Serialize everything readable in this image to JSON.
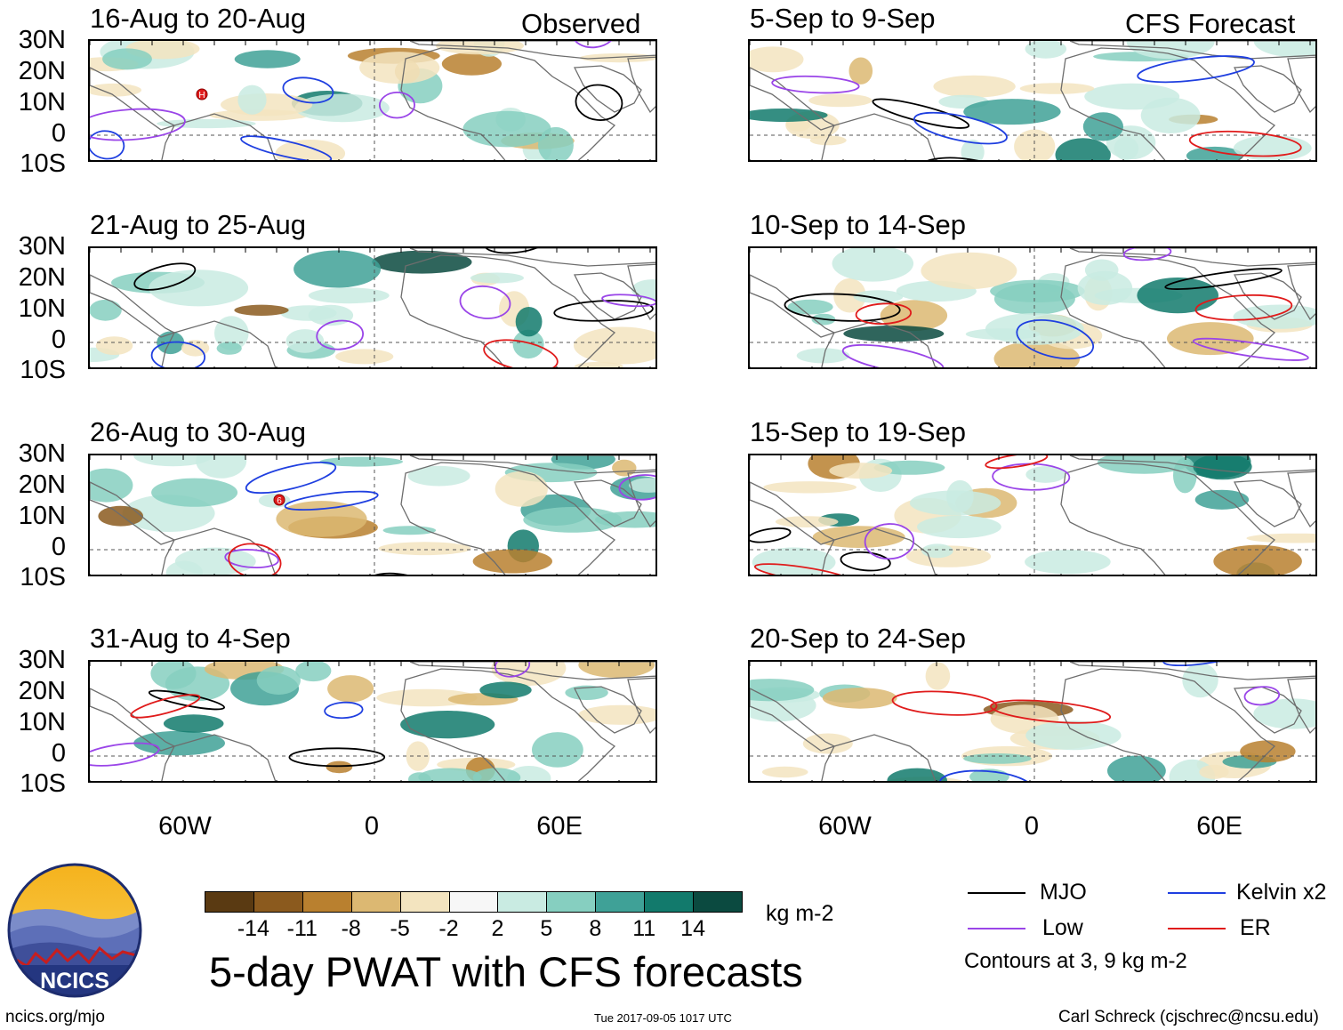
{
  "panels": [
    {
      "title": "16-Aug to 20-Aug",
      "corner": "Observed"
    },
    {
      "title": "5-Sep to 9-Sep",
      "corner": "CFS Forecast"
    },
    {
      "title": "21-Aug to 25-Aug",
      "corner": ""
    },
    {
      "title": "10-Sep to 14-Sep",
      "corner": ""
    },
    {
      "title": "26-Aug to 30-Aug",
      "corner": ""
    },
    {
      "title": "15-Sep to 19-Sep",
      "corner": ""
    },
    {
      "title": "31-Aug to 4-Sep",
      "corner": ""
    },
    {
      "title": "20-Sep to 24-Sep",
      "corner": ""
    }
  ],
  "lat_labels": [
    "30N",
    "20N",
    "10N",
    "0",
    "10S"
  ],
  "lon_labels": [
    "60W",
    "0",
    "60E"
  ],
  "colorbar": {
    "colors": [
      "#5a3a12",
      "#8b5a1e",
      "#b9802f",
      "#dcb872",
      "#f3e4bf",
      "#f7f7f7",
      "#c9ebe2",
      "#86cfc0",
      "#3fa197",
      "#127a6c",
      "#0b4a40"
    ],
    "ticks": [
      "-14",
      "-11",
      "-8",
      "-5",
      "-2",
      "2",
      "5",
      "8",
      "11",
      "14"
    ],
    "units": "kg m-2"
  },
  "legend": {
    "items": [
      {
        "label": "MJO",
        "color": "#000000"
      },
      {
        "label": "Kelvin x2",
        "color": "#1f3fe0"
      },
      {
        "label": "Low",
        "color": "#9a45e8"
      },
      {
        "label": "ER",
        "color": "#e01b1b"
      }
    ],
    "note": "Contours at 3, 9 kg m-2"
  },
  "storm_markers": [
    "H",
    "6"
  ],
  "title": "5-day PWAT with CFS forecasts",
  "logo_text": "NCICS",
  "footer": {
    "left": "ncics.org/mjo",
    "center": "Tue 2017-09-05 1017 UTC",
    "right": "Carl Schreck (cjschrec@ncsu.edu)"
  }
}
